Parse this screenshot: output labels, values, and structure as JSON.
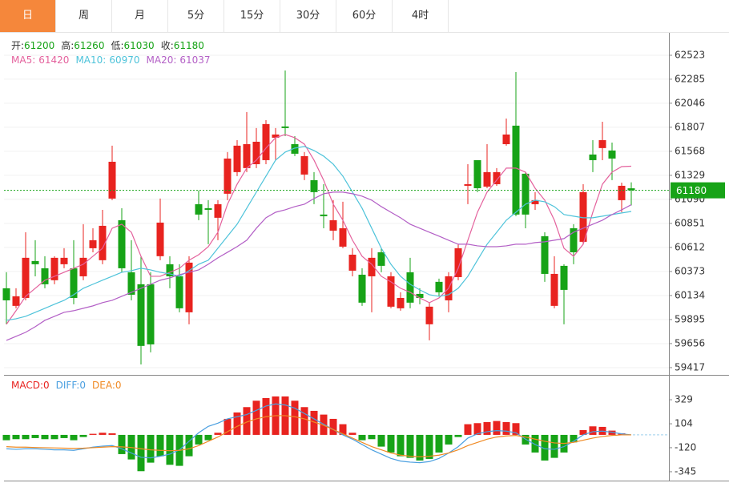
{
  "tabs": [
    "日",
    "周",
    "月",
    "5分",
    "15分",
    "30分",
    "60分",
    "4时"
  ],
  "active_tab": 0,
  "chart_data": [
    {
      "type": "candlestick",
      "up_color": "#e8231f",
      "down_color": "#17a317",
      "price_line_color": "#17a317",
      "ohlc_labels": [
        "开:",
        "高:",
        "低:",
        "收:"
      ],
      "ylim": [
        59345,
        62738
      ],
      "yticks": [
        62523,
        62285,
        62046,
        61807,
        61568,
        61329,
        61090,
        60851,
        60612,
        60373,
        60134,
        59895,
        59656,
        59417
      ],
      "grid": true,
      "open": [
        60206,
        60031,
        60110,
        60477,
        60405,
        60286,
        60445,
        60405,
        60325,
        60604,
        60485,
        61098,
        60883,
        60365,
        60246,
        60246,
        60525,
        60445,
        60325,
        59967,
        61042,
        61002,
        60907,
        61146,
        61361,
        61401,
        61440,
        61480,
        61703,
        61815,
        61639,
        61337,
        61281,
        60939,
        60779,
        60620,
        60381,
        60341,
        60325,
        60564,
        60023,
        60007,
        60365,
        60150,
        59848,
        60270,
        60086,
        60317,
        61225,
        61480,
        61217,
        61241,
        61639,
        61823,
        61345,
        61042,
        60724,
        60031,
        60429,
        60803,
        60668,
        61536,
        61600,
        61576,
        61082,
        61200
      ],
      "high": [
        60365,
        60206,
        60763,
        60684,
        60525,
        60525,
        60604,
        60684,
        60843,
        60803,
        60986,
        61624,
        61002,
        60684,
        60525,
        60365,
        61098,
        60525,
        60445,
        60525,
        61178,
        61082,
        61082,
        61560,
        61679,
        61958,
        61799,
        61878,
        61799,
        62372,
        61719,
        61560,
        61361,
        61241,
        61082,
        61066,
        60604,
        60405,
        60604,
        60604,
        60365,
        60166,
        60509,
        60206,
        60063,
        60302,
        60365,
        60644,
        61440,
        61480,
        61639,
        61401,
        61894,
        62356,
        61361,
        61162,
        60763,
        60525,
        60445,
        60843,
        61241,
        61679,
        61862,
        61655,
        61257,
        61260
      ],
      "low": [
        59848,
        60007,
        60086,
        60325,
        60206,
        60246,
        60405,
        60047,
        60286,
        60564,
        60445,
        61082,
        60365,
        60086,
        59449,
        59569,
        60485,
        60206,
        59967,
        59848,
        60883,
        60644,
        60684,
        61082,
        61321,
        61361,
        61401,
        61440,
        61480,
        61719,
        61520,
        61281,
        61042,
        60803,
        60684,
        60604,
        60325,
        60031,
        59967,
        60365,
        60007,
        59983,
        60007,
        60047,
        59688,
        60126,
        59967,
        60286,
        61042,
        61162,
        61201,
        61225,
        61624,
        60923,
        60803,
        60986,
        60270,
        60007,
        59848,
        60445,
        60644,
        61361,
        61480,
        61281,
        60963,
        61030
      ],
      "close": [
        60086,
        60126,
        60509,
        60445,
        60246,
        60509,
        60509,
        60110,
        60509,
        60684,
        60827,
        61464,
        60405,
        60142,
        59633,
        59648,
        60859,
        60325,
        60007,
        60461,
        60939,
        60986,
        61042,
        61496,
        61624,
        61639,
        61663,
        61839,
        61735,
        61799,
        61544,
        61520,
        61162,
        60923,
        60883,
        60803,
        60540,
        60063,
        60509,
        60429,
        60325,
        60110,
        60063,
        60110,
        60023,
        60166,
        60325,
        60604,
        61241,
        61201,
        61361,
        61361,
        61735,
        60939,
        60939,
        61082,
        60349,
        60349,
        60190,
        60564,
        61162,
        61480,
        61679,
        61496,
        61225,
        61180
      ],
      "series": [
        {
          "label": "MA5:",
          "color": "#e4629d",
          "values": [
            59848,
            59983,
            60126,
            60206,
            60286,
            60325,
            60365,
            60405,
            60445,
            60524,
            60604,
            60803,
            60843,
            60763,
            60524,
            60325,
            60325,
            60365,
            60405,
            60485,
            60540,
            60620,
            60763,
            61042,
            61241,
            61401,
            61480,
            61600,
            61703,
            61735,
            61703,
            61639,
            61480,
            61281,
            61042,
            60883,
            60684,
            60524,
            60445,
            60325,
            60270,
            60206,
            60166,
            60110,
            60063,
            60110,
            60206,
            60405,
            60684,
            60962,
            61162,
            61281,
            61401,
            61401,
            61361,
            61201,
            61082,
            60883,
            60604,
            60524,
            60644,
            60962,
            61241,
            61361,
            61416,
            61420
          ]
        },
        {
          "label": "MA10:",
          "color": "#4ec3da",
          "values": [
            59887,
            59903,
            59927,
            59967,
            60007,
            60047,
            60086,
            60142,
            60206,
            60246,
            60286,
            60325,
            60365,
            60381,
            60405,
            60389,
            60365,
            60349,
            60325,
            60381,
            60445,
            60485,
            60604,
            60724,
            60843,
            61002,
            61162,
            61321,
            61480,
            61560,
            61600,
            61616,
            61576,
            61520,
            61440,
            61321,
            61162,
            61002,
            60803,
            60604,
            60445,
            60325,
            60246,
            60190,
            60142,
            60126,
            60142,
            60206,
            60325,
            60485,
            60644,
            60763,
            60883,
            60962,
            61042,
            61082,
            61066,
            61018,
            60939,
            60923,
            60907,
            60907,
            60923,
            60939,
            60955,
            60970
          ]
        },
        {
          "label": "MA20:",
          "color": "#b35fc6",
          "values": [
            59688,
            59728,
            59768,
            59824,
            59887,
            59927,
            59967,
            59983,
            60007,
            60031,
            60063,
            60086,
            60126,
            60166,
            60206,
            60246,
            60286,
            60309,
            60341,
            60365,
            60389,
            60445,
            60509,
            60564,
            60620,
            60684,
            60803,
            60907,
            60962,
            60986,
            61018,
            61042,
            61098,
            61146,
            61162,
            61162,
            61146,
            61122,
            61082,
            61018,
            60962,
            60907,
            60843,
            60803,
            60763,
            60724,
            60684,
            60644,
            60644,
            60628,
            60620,
            60620,
            60628,
            60644,
            60644,
            60660,
            60668,
            60684,
            60700,
            60763,
            60803,
            60843,
            60883,
            60939,
            60986,
            61037
          ]
        }
      ]
    },
    {
      "type": "bar",
      "up_color": "#e8231f",
      "down_color": "#17a317",
      "ylim": [
        -428,
        547
      ],
      "yticks": [
        329,
        104,
        -120,
        -345
      ],
      "series": [
        {
          "label": "MACD:",
          "color": "#e8231f",
          "values": [
            -50,
            -40,
            -40,
            -30,
            -40,
            -40,
            -30,
            -50,
            -20,
            10,
            20,
            15,
            -180,
            -230,
            -340,
            -260,
            -200,
            -280,
            -290,
            -200,
            -90,
            -50,
            20,
            150,
            210,
            260,
            320,
            345,
            360,
            360,
            320,
            260,
            225,
            190,
            150,
            100,
            20,
            -50,
            -40,
            -110,
            -165,
            -200,
            -215,
            -240,
            -225,
            -165,
            -90,
            -20,
            100,
            110,
            120,
            130,
            120,
            110,
            -90,
            -165,
            -240,
            -215,
            -165,
            -70,
            45,
            80,
            75,
            40,
            15,
            0
          ]
        },
        {
          "label": "DIFF:",
          "type": "line",
          "color": "#4a9fe0",
          "values": [
            -130,
            -135,
            -130,
            -130,
            -135,
            -140,
            -140,
            -145,
            -130,
            -115,
            -105,
            -100,
            -130,
            -170,
            -210,
            -215,
            -200,
            -180,
            -140,
            -60,
            20,
            80,
            110,
            150,
            170,
            190,
            230,
            270,
            290,
            280,
            250,
            200,
            150,
            100,
            50,
            0,
            -40,
            -90,
            -140,
            -180,
            -220,
            -245,
            -255,
            -260,
            -250,
            -220,
            -170,
            -110,
            -30,
            10,
            30,
            40,
            35,
            20,
            -40,
            -90,
            -130,
            -135,
            -110,
            -60,
            0,
            30,
            35,
            25,
            10,
            0
          ]
        },
        {
          "label": "DEA:",
          "type": "line",
          "color": "#f08a24",
          "values": [
            -110,
            -115,
            -115,
            -118,
            -120,
            -122,
            -124,
            -126,
            -124,
            -120,
            -115,
            -110,
            -112,
            -118,
            -130,
            -140,
            -145,
            -148,
            -145,
            -130,
            -100,
            -60,
            -20,
            30,
            80,
            120,
            150,
            170,
            180,
            180,
            170,
            150,
            120,
            90,
            50,
            10,
            -30,
            -70,
            -110,
            -140,
            -170,
            -190,
            -200,
            -205,
            -200,
            -190,
            -170,
            -140,
            -100,
            -70,
            -40,
            -20,
            -10,
            -5,
            -20,
            -40,
            -60,
            -75,
            -80,
            -70,
            -50,
            -30,
            -15,
            -5,
            0,
            0
          ]
        }
      ]
    }
  ]
}
